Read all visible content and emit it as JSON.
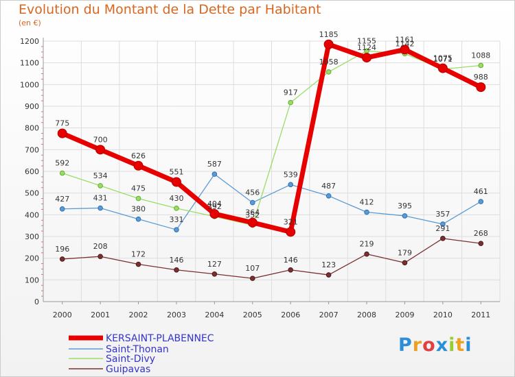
{
  "chart_data": {
    "type": "line",
    "title": "Evolution du Montant de la Dette par Habitant",
    "subtitle": "(en €)",
    "x": [
      "2000",
      "2001",
      "2002",
      "2003",
      "2004",
      "2005",
      "2006",
      "2007",
      "2008",
      "2009",
      "2010",
      "2011"
    ],
    "ylim": [
      0,
      1200
    ],
    "yticks": [
      0,
      100,
      200,
      300,
      400,
      500,
      600,
      700,
      800,
      900,
      1000,
      1100,
      1200
    ],
    "grid": true,
    "legend_placement": "bottom-left",
    "series": [
      {
        "name": "KERSAINT-PLABENNEC",
        "color": "#e60000",
        "values": [
          775,
          700,
          626,
          551,
          404,
          364,
          321,
          1185,
          1124,
          1161,
          1075,
          988
        ]
      },
      {
        "name": "Saint-Thonan",
        "color": "#5b9bd5",
        "values": [
          427,
          431,
          380,
          331,
          587,
          456,
          539,
          487,
          412,
          395,
          357,
          461
        ]
      },
      {
        "name": "Saint-Divy",
        "color": "#99dd66",
        "values": [
          592,
          534,
          475,
          430,
          392,
          352,
          917,
          1058,
          1155,
          1142,
          1071,
          1088
        ]
      },
      {
        "name": "Guipavas",
        "color": "#7a3030",
        "values": [
          196,
          208,
          172,
          146,
          127,
          107,
          146,
          123,
          219,
          179,
          291,
          268
        ]
      }
    ]
  },
  "logo": {
    "text": "Proxiti"
  }
}
